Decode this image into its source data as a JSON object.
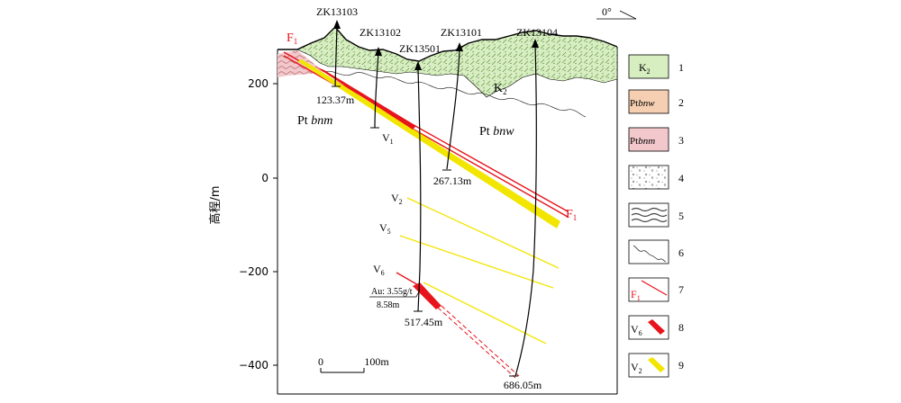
{
  "orientation": "0°",
  "y_axis": {
    "label": "高程/m",
    "ticks": [
      "200",
      "0",
      "−200",
      "−400"
    ]
  },
  "boreholes": {
    "zk13103": {
      "name": "ZK13103",
      "depth": "123.37m"
    },
    "zk13102": {
      "name": "ZK13102"
    },
    "zk13501": {
      "name": "ZK13501",
      "depth": "517.45m"
    },
    "zk13101": {
      "name": "ZK13101",
      "depth": "267.13m"
    },
    "zk13104": {
      "name": "ZK13104",
      "depth": "686.05m"
    }
  },
  "labels": {
    "fault_top": {
      "main": "F",
      "sub": "1"
    },
    "fault_end": {
      "main": "F",
      "sub": "1"
    },
    "k2": {
      "main": "K",
      "sub": "2"
    },
    "pt_bnm_prefix": "Pt ",
    "pt_bnm_italic": "bnm",
    "pt_bnw_prefix": "Pt ",
    "pt_bnw_italic": "bnw",
    "v1": {
      "main": "V",
      "sub": "1"
    },
    "v2": {
      "main": "V",
      "sub": "2"
    },
    "v5": {
      "main": "V",
      "sub": "5"
    },
    "v6": {
      "main": "V",
      "sub": "6"
    },
    "ore_grade": "Au: 3.55g/t",
    "ore_thickness": "8.58m"
  },
  "scale_bar": {
    "start": "0",
    "end": "100m"
  },
  "legend": {
    "items": [
      {
        "num": "1",
        "text_main": "K",
        "text_sub": "2"
      },
      {
        "num": "2",
        "text_prefix": "Pt",
        "text_italic": "bnw"
      },
      {
        "num": "3",
        "text_prefix": "Pt",
        "text_italic": "bnm"
      },
      {
        "num": "4"
      },
      {
        "num": "5"
      },
      {
        "num": "6"
      },
      {
        "num": "7",
        "text_main": "F",
        "text_sub": "1"
      },
      {
        "num": "8",
        "text_main": "V",
        "text_sub": "6"
      },
      {
        "num": "9",
        "text_main": "V",
        "text_sub": "2"
      }
    ]
  },
  "colors": {
    "fault": "#e8141c",
    "gold_vein_high": "#e8141c",
    "gold_vein": "#f2e500",
    "k2_fill": "#d6eec0",
    "pt_bnw_fill": "#f6cfb2",
    "pt_bnm_fill": "#f2c8cc"
  }
}
